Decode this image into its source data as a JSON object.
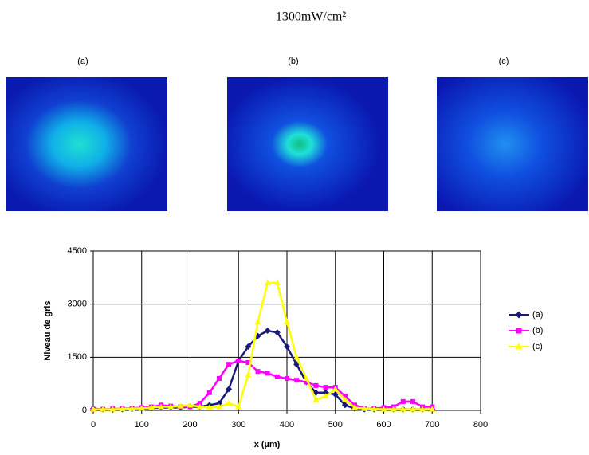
{
  "title": "1300mW/cm²",
  "images": [
    {
      "label": "(a)"
    },
    {
      "label": "(b)"
    },
    {
      "label": "(c)"
    }
  ],
  "chart_data": {
    "type": "line",
    "x_label": "x (µm)",
    "y_label": "Niveau de gris",
    "x": [
      0,
      20,
      40,
      60,
      80,
      100,
      120,
      140,
      160,
      180,
      200,
      220,
      240,
      260,
      280,
      300,
      320,
      340,
      360,
      380,
      400,
      420,
      440,
      460,
      480,
      500,
      520,
      540,
      560,
      580,
      600,
      620,
      640,
      660,
      680,
      700
    ],
    "series": [
      {
        "name": "(a)",
        "color": "#1a1a7a",
        "marker": "diamond",
        "values": [
          50,
          30,
          20,
          30,
          40,
          50,
          60,
          80,
          80,
          80,
          100,
          100,
          150,
          200,
          600,
          1400,
          1800,
          2100,
          2250,
          2200,
          1800,
          1300,
          800,
          500,
          500,
          450,
          150,
          50,
          30,
          30,
          30,
          30,
          30,
          30,
          30,
          30
        ]
      },
      {
        "name": "(b)",
        "color": "#ff00ff",
        "marker": "square",
        "values": [
          30,
          30,
          40,
          50,
          60,
          80,
          100,
          150,
          120,
          100,
          100,
          200,
          500,
          900,
          1300,
          1400,
          1350,
          1100,
          1050,
          950,
          900,
          850,
          800,
          700,
          650,
          650,
          400,
          150,
          50,
          50,
          80,
          100,
          250,
          250,
          100,
          100
        ]
      },
      {
        "name": "(c)",
        "color": "#ffff00",
        "marker": "triangle",
        "values": [
          30,
          30,
          30,
          40,
          50,
          60,
          80,
          100,
          100,
          120,
          150,
          100,
          80,
          100,
          200,
          100,
          1000,
          2500,
          3600,
          3600,
          2500,
          1500,
          900,
          300,
          400,
          600,
          300,
          80,
          50,
          40,
          30,
          30,
          30,
          30,
          30,
          30
        ]
      }
    ],
    "xlim": [
      0,
      800
    ],
    "xticks": [
      0,
      100,
      200,
      300,
      400,
      500,
      600,
      700,
      800
    ],
    "ylim": [
      0,
      4500
    ],
    "yticks": [
      0,
      1500,
      3000,
      4500
    ],
    "grid": true,
    "legend": "right"
  }
}
